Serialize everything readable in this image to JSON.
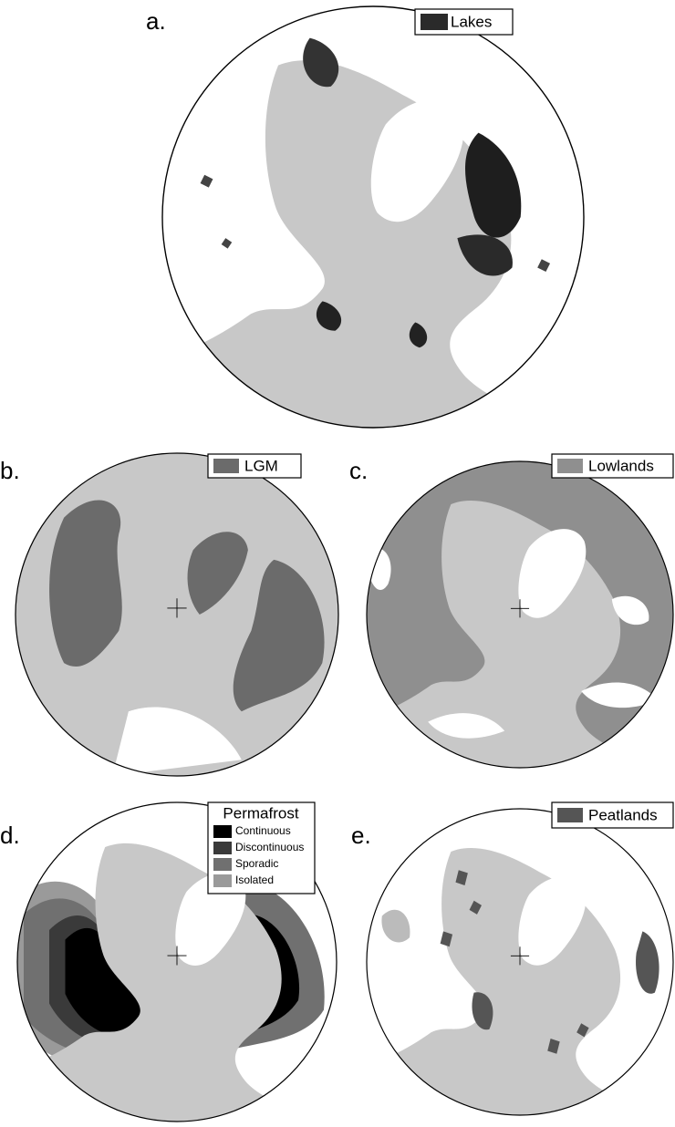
{
  "panels": [
    {
      "label": "a.",
      "legend": [
        {
          "name": "Lakes",
          "color": "#2a2a2a"
        }
      ]
    },
    {
      "label": "b.",
      "legend": [
        {
          "name": "LGM",
          "color": "#6b6b6b"
        }
      ]
    },
    {
      "label": "c.",
      "legend": [
        {
          "name": "Lowlands",
          "color": "#8f8f8f"
        }
      ]
    },
    {
      "label": "d.",
      "legend_title": "Permafrost",
      "legend": [
        {
          "name": "Continuous",
          "color": "#000000"
        },
        {
          "name": "Discontinuous",
          "color": "#3a3a3a"
        },
        {
          "name": "Sporadic",
          "color": "#707070"
        },
        {
          "name": "Isolated",
          "color": "#9a9a9a"
        }
      ]
    },
    {
      "label": "e.",
      "legend": [
        {
          "name": "Peatlands",
          "color": "#555555"
        }
      ]
    }
  ]
}
